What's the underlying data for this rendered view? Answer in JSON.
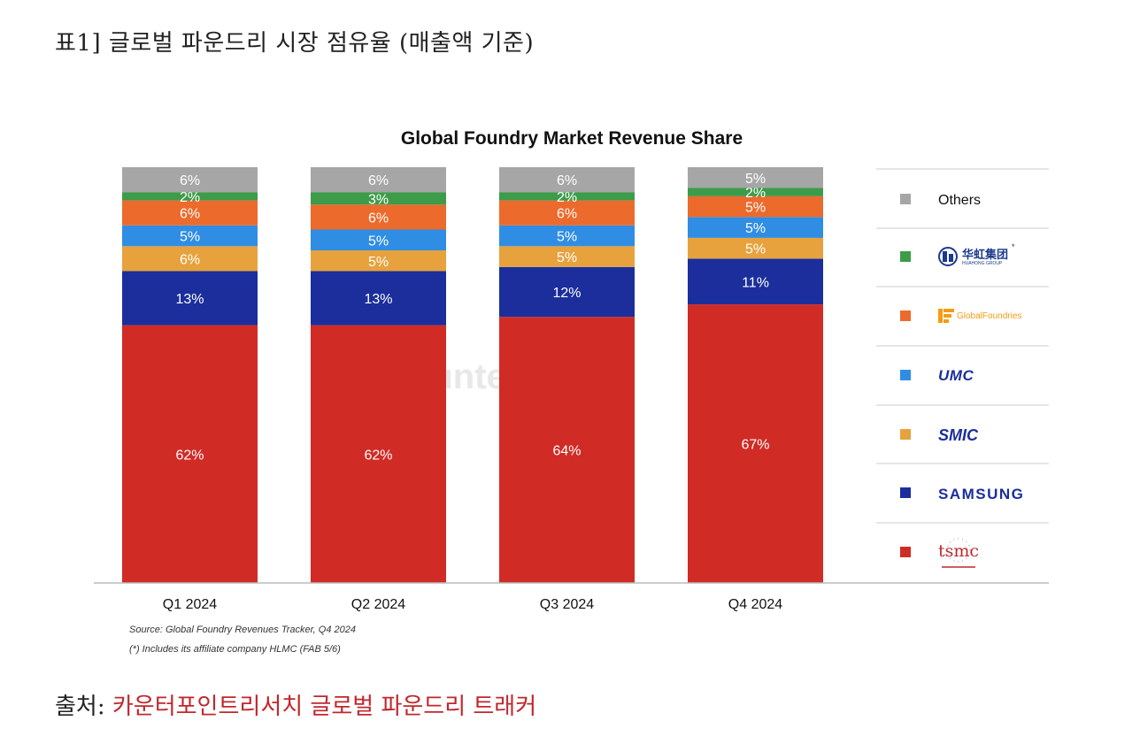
{
  "heading": "표1] 글로벌 파운드리 시장 점유율 (매출액 기준)",
  "source_line": {
    "prefix": "출처: ",
    "name": "카운터포인트리서치 글로벌 파운드리 트래커"
  },
  "colors": {
    "others": "#a6a6a6",
    "huahong": "#3d9b4a",
    "globalfoundries": "#ec6a2c",
    "umc": "#2f8de4",
    "smic": "#e7a23d",
    "samsung": "#1b2e9c",
    "tsmc": "#d12b26",
    "gf_logo": "#f39c12",
    "umc_logo": "#1b2e9c",
    "smic_logo": "#1b2e9c",
    "samsung_logo": "#1b2e9c",
    "tsmc_logo": "#c0272d",
    "huahong_logo": "#1b3a8c"
  },
  "chart_data": {
    "type": "bar",
    "stacked": true,
    "title": "Global Foundry Market Revenue Share",
    "categories": [
      "Q1 2024",
      "Q2 2024",
      "Q3 2024",
      "Q4 2024"
    ],
    "series": [
      {
        "name": "tsmc",
        "key": "tsmc",
        "values": [
          62,
          62,
          64,
          67
        ],
        "labels": [
          "62%",
          "62%",
          "64%",
          "67%"
        ]
      },
      {
        "name": "SAMSUNG",
        "key": "samsung",
        "values": [
          13,
          13,
          12,
          11
        ],
        "labels": [
          "13%",
          "13%",
          "12%",
          "11%"
        ]
      },
      {
        "name": "SMIC",
        "key": "smic",
        "values": [
          6,
          5,
          5,
          5
        ],
        "labels": [
          "6%",
          "5%",
          "5%",
          "5%"
        ]
      },
      {
        "name": "UMC",
        "key": "umc",
        "values": [
          5,
          5,
          5,
          5
        ],
        "labels": [
          "5%",
          "5%",
          "5%",
          "5%"
        ]
      },
      {
        "name": "GlobalFoundries",
        "key": "globalfoundries",
        "values": [
          6,
          6,
          6,
          5
        ],
        "labels": [
          "6%",
          "6%",
          "6%",
          "5%"
        ]
      },
      {
        "name": "华虹集团 (HuaHong Group)",
        "key": "huahong",
        "values": [
          2,
          3,
          2,
          2
        ],
        "labels": [
          "2%",
          "3%",
          "2%",
          "2%"
        ]
      },
      {
        "name": "Others",
        "key": "others",
        "values": [
          6,
          6,
          6,
          5
        ],
        "labels": [
          "6%",
          "6%",
          "6%",
          "5%"
        ]
      }
    ],
    "ylim": [
      0,
      100
    ],
    "xlabel": "",
    "ylabel": "",
    "legend_position": "right",
    "grid": false,
    "watermark": "Counterpoint",
    "notes": [
      "Source: Global Foundry Revenues Tracker, Q4 2024",
      "(*) Includes its affiliate company HLMC (FAB 5/6)"
    ]
  },
  "legend": {
    "others_label": "Others",
    "huahong_logo": "华虹集团",
    "huahong_logo_sub": "HUAHONG GROUP",
    "huahong_star": "*",
    "gf_logo": "GlobalFoundries",
    "umc_logo": "UMC",
    "smic_logo": "SMIC",
    "samsung_logo": "SAMSUNG",
    "tsmc_logo": "tsmc"
  },
  "icons": {
    "huahong": "huahong-logo-icon",
    "globalfoundries": "globalfoundries-logo-icon",
    "tsmc": "tsmc-logo-icon",
    "watermark": "counterpoint-watermark-icon"
  }
}
